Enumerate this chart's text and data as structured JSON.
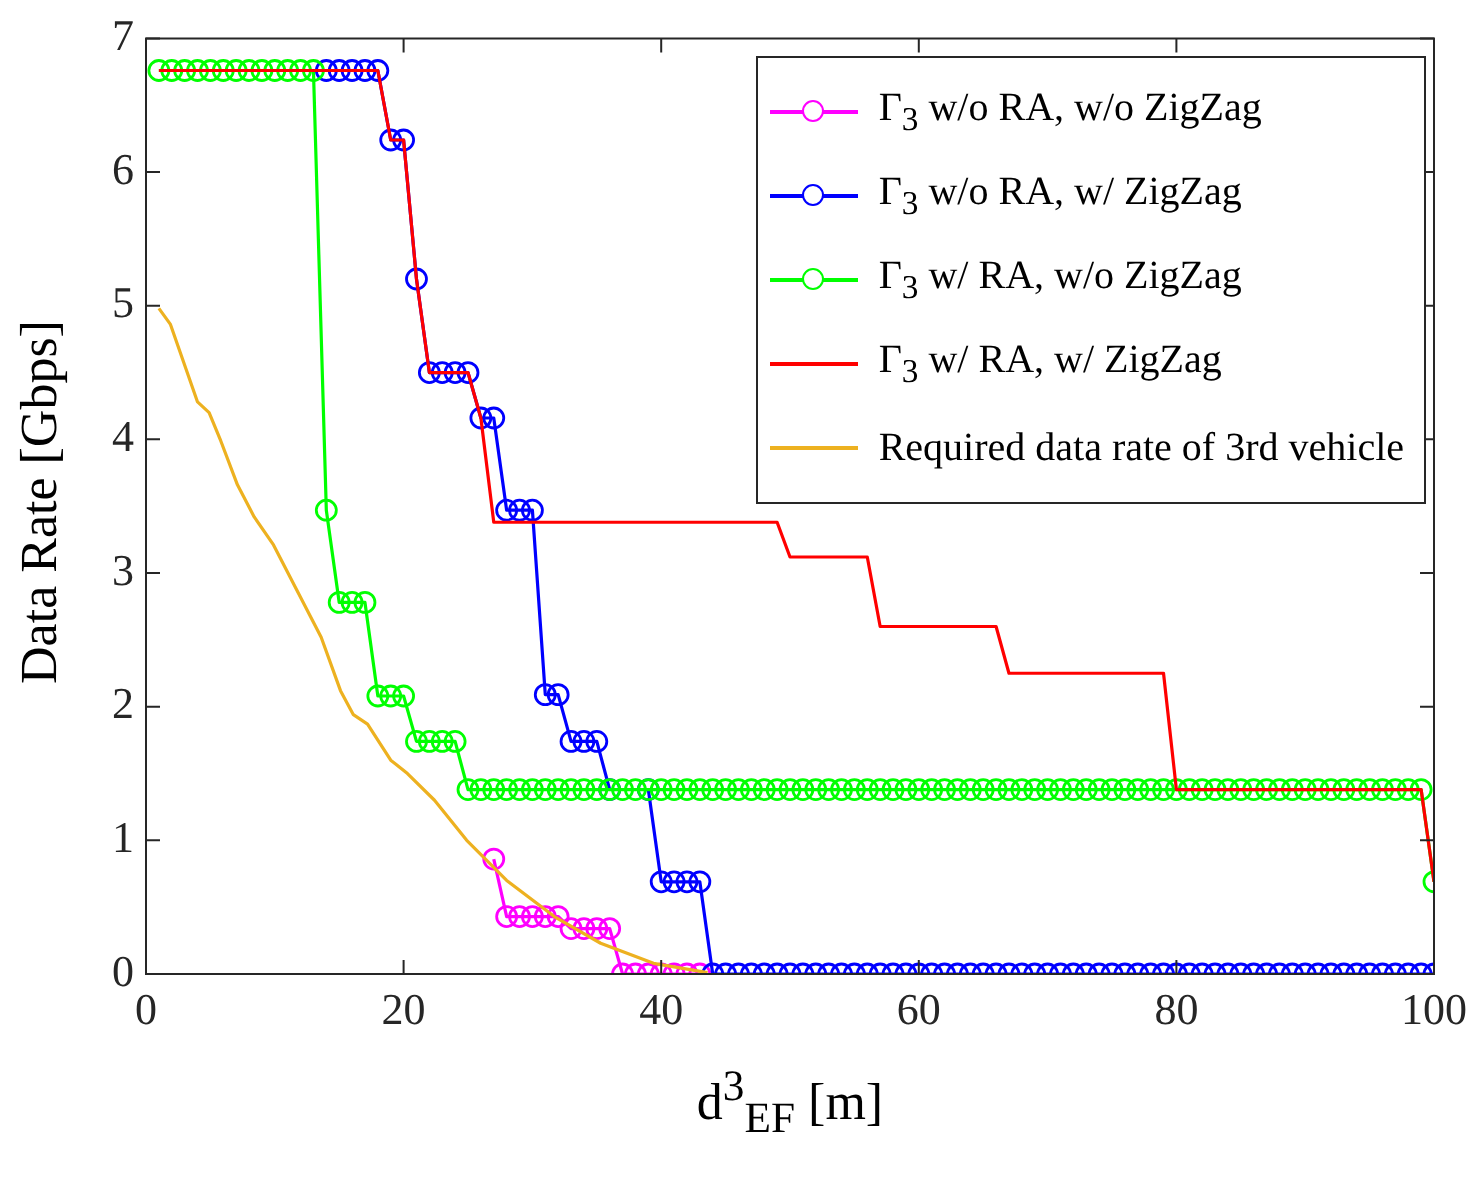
{
  "chart_data": {
    "type": "line",
    "xlabel": "d$^{3}$$_{EF}$ [m]",
    "ylabel": "Data Rate [Gbps]",
    "xlim": [
      0,
      100
    ],
    "ylim": [
      0,
      7
    ],
    "xticks": [
      0,
      20,
      40,
      60,
      80,
      100
    ],
    "yticks": [
      0,
      1,
      2,
      3,
      4,
      5,
      6,
      7
    ],
    "grid": false,
    "legend": "top right",
    "x": [
      1,
      2,
      3,
      4,
      5,
      6,
      7,
      8,
      9,
      10,
      11,
      12,
      13,
      14,
      15,
      16,
      17,
      18,
      19,
      20,
      21,
      22,
      23,
      24,
      25,
      26,
      27,
      28,
      29,
      30,
      31,
      32,
      33,
      34,
      35,
      36,
      37,
      38,
      39,
      40,
      41,
      42,
      43,
      44,
      45,
      46,
      47,
      48,
      49,
      50,
      51,
      52,
      53,
      54,
      55,
      56,
      57,
      58,
      59,
      60,
      61,
      62,
      63,
      64,
      65,
      66,
      67,
      68,
      69,
      70,
      71,
      72,
      73,
      74,
      75,
      76,
      77,
      78,
      79,
      80,
      81,
      82,
      83,
      84,
      85,
      86,
      87,
      88,
      89,
      90,
      91,
      92,
      93,
      94,
      95,
      96,
      97,
      98,
      99,
      100
    ],
    "series": [
      {
        "name": "Γ$_{3}$ w/o RA, w/o ZigZag",
        "color": "#ff00ff",
        "marker": "circle",
        "values": [
          null,
          null,
          null,
          null,
          null,
          null,
          null,
          null,
          null,
          null,
          null,
          null,
          null,
          null,
          null,
          null,
          null,
          null,
          null,
          null,
          null,
          null,
          null,
          null,
          null,
          null,
          0.86,
          0.43,
          0.43,
          0.43,
          0.43,
          0.43,
          0.34,
          0.34,
          0.34,
          0.34,
          0,
          0,
          0,
          0,
          0,
          0,
          0,
          null,
          null,
          null,
          null,
          null,
          null,
          null,
          null,
          null,
          null,
          null,
          null,
          null,
          null,
          null,
          null,
          null,
          null,
          null,
          null,
          null,
          null,
          null,
          null,
          null,
          null,
          null,
          null,
          null,
          null,
          null,
          null,
          null,
          null,
          null,
          null,
          null,
          null,
          null,
          null,
          null,
          null,
          null,
          null,
          null,
          null,
          null,
          null,
          null,
          null,
          null,
          null,
          null,
          null,
          null,
          null,
          null
        ]
      },
      {
        "name": "Γ$_{3}$ w/o RA, w/ ZigZag",
        "color": "#0000ff",
        "marker": "circle",
        "values": [
          null,
          null,
          null,
          null,
          null,
          null,
          null,
          null,
          null,
          null,
          null,
          null,
          null,
          6.76,
          6.76,
          6.76,
          6.76,
          6.76,
          6.24,
          6.24,
          5.2,
          4.5,
          4.5,
          4.5,
          4.5,
          4.16,
          4.16,
          3.47,
          3.47,
          3.47,
          2.09,
          2.09,
          1.74,
          1.74,
          1.74,
          1.38,
          null,
          null,
          1.38,
          0.69,
          0.69,
          0.69,
          0.69,
          0,
          0,
          0,
          0,
          0,
          0,
          0,
          0,
          0,
          0,
          0,
          0,
          0,
          0,
          0,
          0,
          0,
          0,
          0,
          0,
          0,
          0,
          0,
          0,
          0,
          0,
          0,
          0,
          0,
          0,
          0,
          0,
          0,
          0,
          0,
          0,
          0,
          0,
          0,
          0,
          0,
          0,
          0,
          0,
          0,
          0,
          0,
          0,
          0,
          0,
          0,
          0,
          0,
          0,
          0,
          0,
          0
        ]
      },
      {
        "name": "Γ$_{3}$ w/ RA, w/o ZigZag",
        "color": "#00ff00",
        "marker": "circle",
        "values": [
          6.76,
          6.76,
          6.76,
          6.76,
          6.76,
          6.76,
          6.76,
          6.76,
          6.76,
          6.76,
          6.76,
          6.76,
          6.76,
          3.47,
          2.78,
          2.78,
          2.78,
          2.08,
          2.08,
          2.08,
          1.74,
          1.74,
          1.74,
          1.74,
          1.38,
          1.38,
          1.38,
          1.38,
          1.38,
          1.38,
          1.38,
          1.38,
          1.38,
          1.38,
          1.38,
          1.38,
          1.38,
          1.38,
          1.38,
          1.38,
          1.38,
          1.38,
          1.38,
          1.38,
          1.38,
          1.38,
          1.38,
          1.38,
          1.38,
          1.38,
          1.38,
          1.38,
          1.38,
          1.38,
          1.38,
          1.38,
          1.38,
          1.38,
          1.38,
          1.38,
          1.38,
          1.38,
          1.38,
          1.38,
          1.38,
          1.38,
          1.38,
          1.38,
          1.38,
          1.38,
          1.38,
          1.38,
          1.38,
          1.38,
          1.38,
          1.38,
          1.38,
          1.38,
          1.38,
          1.38,
          1.38,
          1.38,
          1.38,
          1.38,
          1.38,
          1.38,
          1.38,
          1.38,
          1.38,
          1.38,
          1.38,
          1.38,
          1.38,
          1.38,
          1.38,
          1.38,
          1.38,
          1.38,
          1.38,
          0.69
        ]
      },
      {
        "name": "Γ$_{3}$ w/ RA, w/ ZigZag",
        "color": "#ff0000",
        "marker": "none",
        "values": [
          6.76,
          6.76,
          6.76,
          6.76,
          6.76,
          6.76,
          6.76,
          6.76,
          6.76,
          6.76,
          6.76,
          6.76,
          6.76,
          6.76,
          6.76,
          6.76,
          6.76,
          6.76,
          6.24,
          6.24,
          5.2,
          4.5,
          4.5,
          4.5,
          4.5,
          4.16,
          3.38,
          3.38,
          3.38,
          3.38,
          3.38,
          3.38,
          3.38,
          3.38,
          3.38,
          3.38,
          3.38,
          3.38,
          3.38,
          3.38,
          3.38,
          3.38,
          3.38,
          3.38,
          3.38,
          3.38,
          3.38,
          3.38,
          3.38,
          3.12,
          3.12,
          3.12,
          3.12,
          3.12,
          3.12,
          3.12,
          2.6,
          2.6,
          2.6,
          2.6,
          2.6,
          2.6,
          2.6,
          2.6,
          2.6,
          2.6,
          2.25,
          2.25,
          2.25,
          2.25,
          2.25,
          2.25,
          2.25,
          2.25,
          2.25,
          2.25,
          2.25,
          2.25,
          2.25,
          1.38,
          1.38,
          1.38,
          1.38,
          1.38,
          1.38,
          1.38,
          1.38,
          1.38,
          1.38,
          1.38,
          1.38,
          1.38,
          1.38,
          1.38,
          1.38,
          1.38,
          1.38,
          1.38,
          1.38,
          0.69
        ]
      },
      {
        "name": "Required data rate of 3rd vehicle",
        "color": "#edb120",
        "marker": "none",
        "x": [
          1,
          1.9,
          4,
          4.9,
          5.8,
          7.1,
          8.4,
          9.9,
          13.6,
          15.1,
          16.1,
          17.2,
          19,
          20.3,
          22.4,
          24.9,
          28,
          31.7,
          35.3,
          39.4,
          43.6
        ],
        "values": [
          4.98,
          4.86,
          4.28,
          4.2,
          3.99,
          3.66,
          3.42,
          3.21,
          2.52,
          2.12,
          1.94,
          1.87,
          1.6,
          1.5,
          1.3,
          1.0,
          0.7,
          0.43,
          0.23,
          0.08,
          0.01
        ]
      }
    ]
  }
}
